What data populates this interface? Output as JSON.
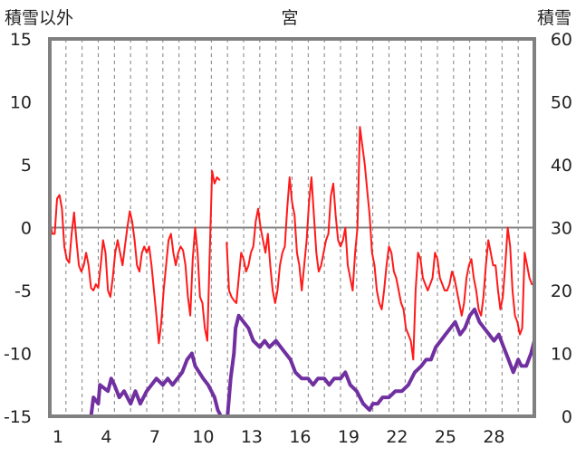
{
  "chart_data": {
    "type": "line",
    "title": "宮",
    "ylabel_left": "積雪以外",
    "ylabel_right": "積雪",
    "xlim": [
      0,
      30
    ],
    "ylim_left": [
      -15,
      15
    ],
    "ylim_right": [
      0,
      60
    ],
    "x_ticks": [
      1,
      4,
      7,
      10,
      13,
      16,
      19,
      22,
      25,
      28
    ],
    "y_ticks_left": [
      15,
      10,
      5,
      0,
      -5,
      -10,
      -15
    ],
    "y_ticks_right": [
      60,
      50,
      40,
      30,
      20,
      10,
      0
    ],
    "zero_line_y": 0,
    "grid": "vertical dashed per day",
    "colors": {
      "temperature": "#ff1a1a",
      "snow": "#7030a0",
      "frame": "#808080",
      "zero_line": "#808080",
      "grid": "#808080"
    },
    "series": [
      {
        "axis": "left",
        "color": "#ff1a1a",
        "points": [
          [
            0.0,
            0.5
          ],
          [
            0.15,
            -0.5
          ],
          [
            0.3,
            -0.5
          ],
          [
            0.45,
            2.3
          ],
          [
            0.6,
            2.6
          ],
          [
            0.75,
            1.5
          ],
          [
            0.9,
            -1.5
          ],
          [
            1.05,
            -2.5
          ],
          [
            1.2,
            -2.8
          ],
          [
            1.35,
            -0.5
          ],
          [
            1.5,
            1.2
          ],
          [
            1.65,
            -1
          ],
          [
            1.8,
            -3
          ],
          [
            1.95,
            -3.5
          ],
          [
            2.1,
            -3
          ],
          [
            2.25,
            -2
          ],
          [
            2.4,
            -3
          ],
          [
            2.55,
            -4.8
          ],
          [
            2.7,
            -5
          ],
          [
            2.85,
            -4.5
          ],
          [
            3.0,
            -4.8
          ],
          [
            3.15,
            -3
          ],
          [
            3.3,
            -1
          ],
          [
            3.45,
            -2
          ],
          [
            3.6,
            -5
          ],
          [
            3.75,
            -5.5
          ],
          [
            3.9,
            -4
          ],
          [
            4.05,
            -2
          ],
          [
            4.2,
            -1
          ],
          [
            4.35,
            -2
          ],
          [
            4.5,
            -3
          ],
          [
            4.65,
            -1.5
          ],
          [
            4.8,
            0
          ],
          [
            4.95,
            1.3
          ],
          [
            5.1,
            0.5
          ],
          [
            5.25,
            -1
          ],
          [
            5.4,
            -3
          ],
          [
            5.55,
            -3.5
          ],
          [
            5.7,
            -2
          ],
          [
            5.85,
            -1.5
          ],
          [
            6.0,
            -2
          ],
          [
            6.15,
            -1.5
          ],
          [
            6.3,
            -3
          ],
          [
            6.45,
            -5
          ],
          [
            6.6,
            -7
          ],
          [
            6.75,
            -9.2
          ],
          [
            6.9,
            -7.5
          ],
          [
            7.05,
            -5
          ],
          [
            7.2,
            -3
          ],
          [
            7.35,
            -1
          ],
          [
            7.5,
            -0.5
          ],
          [
            7.65,
            -2
          ],
          [
            7.8,
            -3
          ],
          [
            7.95,
            -2
          ],
          [
            8.1,
            -1.5
          ],
          [
            8.25,
            -1.8
          ],
          [
            8.4,
            -3
          ],
          [
            8.55,
            -5.5
          ],
          [
            8.7,
            -7
          ],
          [
            8.85,
            -2.5
          ],
          [
            9.0,
            0
          ],
          [
            9.15,
            -2
          ],
          [
            9.3,
            -5.5
          ],
          [
            9.45,
            -6
          ],
          [
            9.6,
            -8
          ],
          [
            9.75,
            -9
          ],
          [
            9.9,
            -2
          ],
          [
            10.05,
            4.5
          ],
          [
            10.2,
            3.5
          ],
          [
            10.35,
            4
          ],
          [
            10.5,
            3.8
          ],
          [
            10.65,
            null
          ],
          [
            10.95,
            -1.2
          ],
          [
            11.1,
            -5
          ],
          [
            11.25,
            -5.5
          ],
          [
            11.4,
            -5.8
          ],
          [
            11.55,
            -6
          ],
          [
            11.7,
            -4
          ],
          [
            11.85,
            -2
          ],
          [
            12.0,
            -2.5
          ],
          [
            12.15,
            -3.5
          ],
          [
            12.3,
            -3
          ],
          [
            12.45,
            -2
          ],
          [
            12.6,
            -1.5
          ],
          [
            12.75,
            0.5
          ],
          [
            12.9,
            1.5
          ],
          [
            13.05,
            0
          ],
          [
            13.2,
            -1
          ],
          [
            13.35,
            -2
          ],
          [
            13.5,
            -0.5
          ],
          [
            13.65,
            -3
          ],
          [
            13.8,
            -5
          ],
          [
            13.95,
            -6
          ],
          [
            14.1,
            -5
          ],
          [
            14.25,
            -3
          ],
          [
            14.4,
            -2
          ],
          [
            14.55,
            -1.5
          ],
          [
            14.7,
            1.5
          ],
          [
            14.85,
            4
          ],
          [
            15.0,
            2
          ],
          [
            15.15,
            1
          ],
          [
            15.3,
            -2
          ],
          [
            15.45,
            -3
          ],
          [
            15.6,
            -5
          ],
          [
            15.75,
            -3
          ],
          [
            15.9,
            -1
          ],
          [
            16.05,
            2
          ],
          [
            16.2,
            4
          ],
          [
            16.35,
            1
          ],
          [
            16.5,
            -2
          ],
          [
            16.65,
            -3.5
          ],
          [
            16.8,
            -3
          ],
          [
            16.95,
            -2
          ],
          [
            17.1,
            -1
          ],
          [
            17.25,
            -0.5
          ],
          [
            17.4,
            2.5
          ],
          [
            17.55,
            3.5
          ],
          [
            17.7,
            1
          ],
          [
            17.85,
            -1
          ],
          [
            18.0,
            -1.5
          ],
          [
            18.15,
            -1
          ],
          [
            18.3,
            0
          ],
          [
            18.45,
            -3
          ],
          [
            18.6,
            -4
          ],
          [
            18.75,
            -5
          ],
          [
            18.9,
            -2
          ],
          [
            19.05,
            0
          ],
          [
            19.2,
            8
          ],
          [
            19.35,
            6.5
          ],
          [
            19.5,
            5
          ],
          [
            19.65,
            3
          ],
          [
            19.8,
            1
          ],
          [
            19.95,
            -2
          ],
          [
            20.1,
            -3
          ],
          [
            20.25,
            -5
          ],
          [
            20.4,
            -6
          ],
          [
            20.55,
            -6.5
          ],
          [
            20.7,
            -5
          ],
          [
            20.85,
            -3
          ],
          [
            21.0,
            -1.5
          ],
          [
            21.15,
            -2
          ],
          [
            21.3,
            -3.5
          ],
          [
            21.45,
            -4
          ],
          [
            21.6,
            -5
          ],
          [
            21.75,
            -6
          ],
          [
            21.9,
            -6.5
          ],
          [
            22.05,
            -8
          ],
          [
            22.2,
            -8.5
          ],
          [
            22.35,
            -9
          ],
          [
            22.5,
            -10.5
          ],
          [
            22.65,
            -5
          ],
          [
            22.8,
            -2
          ],
          [
            22.95,
            -2.5
          ],
          [
            23.1,
            -4
          ],
          [
            23.25,
            -4.5
          ],
          [
            23.4,
            -5
          ],
          [
            23.55,
            -4.5
          ],
          [
            23.7,
            -4
          ],
          [
            23.85,
            -2
          ],
          [
            24.0,
            -2.5
          ],
          [
            24.15,
            -4
          ],
          [
            24.3,
            -4.5
          ],
          [
            24.45,
            -5
          ],
          [
            24.6,
            -5
          ],
          [
            24.75,
            -4.5
          ],
          [
            24.9,
            -3.5
          ],
          [
            25.05,
            -4
          ],
          [
            25.2,
            -5
          ],
          [
            25.35,
            -6
          ],
          [
            25.5,
            -7
          ],
          [
            25.65,
            -6
          ],
          [
            25.8,
            -4
          ],
          [
            25.95,
            -3
          ],
          [
            26.1,
            -2.5
          ],
          [
            26.25,
            -4
          ],
          [
            26.4,
            -5
          ],
          [
            26.55,
            -6.5
          ],
          [
            26.7,
            -7
          ],
          [
            26.85,
            -5.5
          ],
          [
            27.0,
            -3
          ],
          [
            27.15,
            -1
          ],
          [
            27.3,
            -2
          ],
          [
            27.45,
            -3
          ],
          [
            27.6,
            -3
          ],
          [
            27.75,
            -5
          ],
          [
            27.9,
            -6.5
          ],
          [
            28.05,
            -5.5
          ],
          [
            28.2,
            -3
          ],
          [
            28.35,
            0
          ],
          [
            28.5,
            -1.5
          ],
          [
            28.65,
            -5
          ],
          [
            28.8,
            -7
          ],
          [
            28.95,
            -7.5
          ],
          [
            29.1,
            -8.5
          ],
          [
            29.25,
            -8
          ],
          [
            29.4,
            -2
          ],
          [
            29.55,
            -3
          ],
          [
            29.7,
            -4
          ],
          [
            29.85,
            -4.5
          ],
          [
            30.0,
            -4.5
          ]
        ]
      },
      {
        "axis": "right",
        "color": "#7030a0",
        "points": [
          [
            0.0,
            0
          ],
          [
            2.55,
            0
          ],
          [
            2.6,
            1
          ],
          [
            2.7,
            3
          ],
          [
            3.0,
            2
          ],
          [
            3.1,
            5
          ],
          [
            3.6,
            4
          ],
          [
            3.8,
            6
          ],
          [
            4.0,
            5
          ],
          [
            4.3,
            3
          ],
          [
            4.6,
            4
          ],
          [
            4.8,
            3
          ],
          [
            5.0,
            2
          ],
          [
            5.3,
            4
          ],
          [
            5.6,
            2
          ],
          [
            6.0,
            4
          ],
          [
            6.3,
            5
          ],
          [
            6.6,
            6
          ],
          [
            7.0,
            5
          ],
          [
            7.3,
            6
          ],
          [
            7.6,
            5
          ],
          [
            7.9,
            6
          ],
          [
            8.2,
            7
          ],
          [
            8.5,
            9
          ],
          [
            8.8,
            10
          ],
          [
            9.0,
            8
          ],
          [
            9.5,
            6
          ],
          [
            9.8,
            5
          ],
          [
            10.2,
            3
          ],
          [
            10.4,
            1
          ],
          [
            10.6,
            0
          ],
          [
            11.0,
            0
          ],
          [
            11.2,
            6
          ],
          [
            11.4,
            10
          ],
          [
            11.5,
            14
          ],
          [
            11.7,
            16
          ],
          [
            12.0,
            15
          ],
          [
            12.3,
            14
          ],
          [
            12.6,
            12
          ],
          [
            13.0,
            11
          ],
          [
            13.3,
            12
          ],
          [
            13.6,
            11
          ],
          [
            14.0,
            12
          ],
          [
            14.3,
            11
          ],
          [
            14.6,
            10
          ],
          [
            14.9,
            9
          ],
          [
            15.2,
            7
          ],
          [
            15.6,
            6
          ],
          [
            16.0,
            6
          ],
          [
            16.3,
            5
          ],
          [
            16.6,
            6
          ],
          [
            17.0,
            6
          ],
          [
            17.3,
            5
          ],
          [
            17.6,
            6
          ],
          [
            18.0,
            6
          ],
          [
            18.3,
            7
          ],
          [
            18.6,
            5
          ],
          [
            19.0,
            4
          ],
          [
            19.4,
            2
          ],
          [
            19.8,
            1
          ],
          [
            20.0,
            2
          ],
          [
            20.3,
            2
          ],
          [
            20.6,
            3
          ],
          [
            21.0,
            3
          ],
          [
            21.4,
            4
          ],
          [
            21.8,
            4
          ],
          [
            22.2,
            5
          ],
          [
            22.6,
            7
          ],
          [
            23.0,
            8
          ],
          [
            23.3,
            9
          ],
          [
            23.6,
            9
          ],
          [
            23.9,
            11
          ],
          [
            24.2,
            12
          ],
          [
            24.5,
            13
          ],
          [
            24.8,
            14
          ],
          [
            25.1,
            15
          ],
          [
            25.4,
            13
          ],
          [
            25.7,
            14
          ],
          [
            26.0,
            16
          ],
          [
            26.3,
            17
          ],
          [
            26.6,
            15
          ],
          [
            26.9,
            14
          ],
          [
            27.2,
            13
          ],
          [
            27.5,
            12
          ],
          [
            27.8,
            13
          ],
          [
            28.1,
            11
          ],
          [
            28.4,
            9
          ],
          [
            28.7,
            7
          ],
          [
            29.0,
            9
          ],
          [
            29.2,
            8
          ],
          [
            29.5,
            8
          ],
          [
            29.8,
            10
          ],
          [
            30.0,
            12
          ]
        ]
      }
    ]
  }
}
